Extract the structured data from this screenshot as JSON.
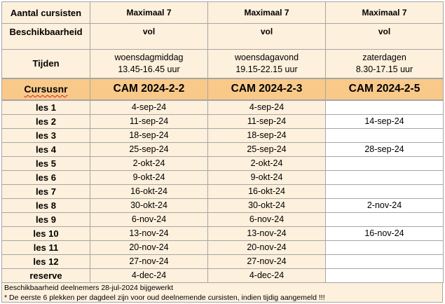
{
  "header": {
    "aantal_label": "Aantal cursisten",
    "aantal_values": [
      "Maximaal 7",
      "Maximaal 7",
      "Maximaal 7"
    ],
    "beschikbaarheid_label": "Beschikbaarheid",
    "beschikbaarheid_values": [
      "vol",
      "vol",
      "vol"
    ],
    "tijden_label": "Tijden",
    "tijden": [
      {
        "day": "woensdagmiddag",
        "time": "13.45-16.45 uur"
      },
      {
        "day": "woensdagavond",
        "time": "19.15-22.15 uur"
      },
      {
        "day": "zaterdagen",
        "time": "8.30-17.15 uur"
      }
    ],
    "cursusnr_label": "Cursusnr",
    "courses": [
      "CAM 2024-2-2",
      "CAM 2024-2-3",
      "CAM 2024-2-5"
    ]
  },
  "lessons": [
    {
      "label": "les 1",
      "dates": [
        "4-sep-24",
        "4-sep-24",
        ""
      ]
    },
    {
      "label": "les 2",
      "dates": [
        "11-sep-24",
        "11-sep-24",
        "14-sep-24"
      ]
    },
    {
      "label": "les 3",
      "dates": [
        "18-sep-24",
        "18-sep-24",
        ""
      ]
    },
    {
      "label": "les 4",
      "dates": [
        "25-sep-24",
        "25-sep-24",
        "28-sep-24"
      ]
    },
    {
      "label": "les 5",
      "dates": [
        "2-okt-24",
        "2-okt-24",
        ""
      ]
    },
    {
      "label": "les 6",
      "dates": [
        "9-okt-24",
        "9-okt-24",
        ""
      ]
    },
    {
      "label": "les 7",
      "dates": [
        "16-okt-24",
        "16-okt-24",
        ""
      ]
    },
    {
      "label": "les 8",
      "dates": [
        "30-okt-24",
        "30-okt-24",
        "2-nov-24"
      ]
    },
    {
      "label": "les 9",
      "dates": [
        "6-nov-24",
        "6-nov-24",
        ""
      ]
    },
    {
      "label": "les 10",
      "dates": [
        "13-nov-24",
        "13-nov-24",
        "16-nov-24"
      ]
    },
    {
      "label": "les 11",
      "dates": [
        "20-nov-24",
        "20-nov-24",
        ""
      ]
    },
    {
      "label": "les 12",
      "dates": [
        "27-nov-24",
        "27-nov-24",
        ""
      ]
    },
    {
      "label": "reserve",
      "dates": [
        "4-dec-24",
        "4-dec-24",
        ""
      ]
    }
  ],
  "footer": {
    "line1": "Beschikbaarheid deelnemers 28-jul-2024 bijgewerkt",
    "line2": "*  De eerste 6 plekken per dagdeel zijn voor oud deelnemende cursisten, indien tijdig aangemeld !!!"
  },
  "colors": {
    "header_fill": "#fdf0dc",
    "cursusnr_fill": "#f9c98a",
    "grid": "#a6a6a6"
  }
}
